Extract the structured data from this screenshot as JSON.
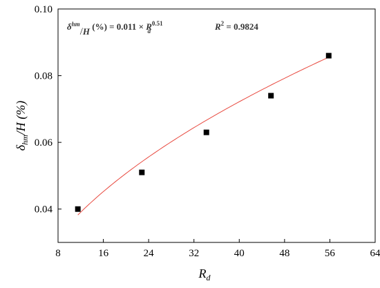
{
  "chart_data": {
    "type": "scatter",
    "xlabel": "R",
    "xlabel_sub": "d",
    "ylabel_main": "δ",
    "ylabel_sub": "hm",
    "ylabel_tail": "/H (%)",
    "xlim": [
      8,
      64
    ],
    "ylim": [
      0.03,
      0.1
    ],
    "xticks": [
      8,
      16,
      24,
      32,
      40,
      48,
      56,
      64
    ],
    "yticks": [
      "0.04",
      "0.06",
      "0.08",
      "0.10"
    ],
    "ytick_values": [
      0.04,
      0.06,
      0.08,
      0.1
    ],
    "grid": false,
    "legend": "none",
    "points": [
      {
        "x": 11.5,
        "y": 0.04
      },
      {
        "x": 22.8,
        "y": 0.051
      },
      {
        "x": 34.2,
        "y": 0.063
      },
      {
        "x": 45.6,
        "y": 0.074
      },
      {
        "x": 55.8,
        "y": 0.086
      }
    ],
    "fit": {
      "coef": 0.011,
      "exp": 0.51,
      "x_range": [
        11.5,
        55.8
      ],
      "color": "#e8493f"
    },
    "marker_color": "#000000",
    "annotation": {
      "lhs_sym": "δ",
      "lhs_sub": "hm",
      "lhs_slash": "/",
      "lhs_H": "H",
      "lhs_unit": " (%) = 0.011 × ",
      "rhs_R": "R",
      "rhs_sup": "0.51",
      "rhs_sub": "d",
      "r2": "R",
      "r2_sup": "2",
      "r2_eq": " = 0.9824"
    }
  }
}
